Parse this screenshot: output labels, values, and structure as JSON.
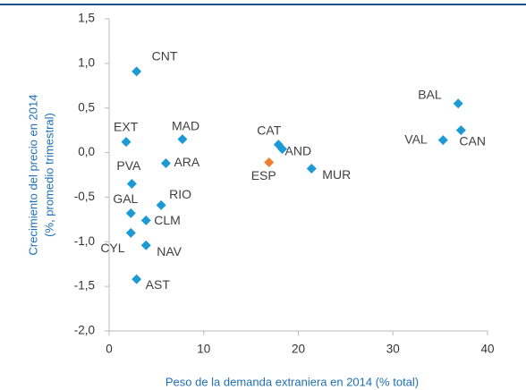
{
  "chart_data": {
    "type": "scatter",
    "xlabel": "Peso de la demanda extraniera en 2014 (% total)",
    "ylabel": [
      "Crecimiento del precio en 2014",
      "(%, promedio trimestral)"
    ],
    "xlim": [
      0,
      40
    ],
    "xticks": [
      0,
      10,
      20,
      30,
      40
    ],
    "ylim": [
      -2.0,
      1.5
    ],
    "yticks": [
      {
        "value": -2.0,
        "label": "-2,0"
      },
      {
        "value": -1.5,
        "label": "-1,5"
      },
      {
        "value": -1.0,
        "label": "-1,0"
      },
      {
        "value": -0.5,
        "label": "-0,5"
      },
      {
        "value": 0.0,
        "label": "0,0"
      },
      {
        "value": 0.5,
        "label": "0,5"
      },
      {
        "value": 1.0,
        "label": "1,0"
      },
      {
        "value": 1.5,
        "label": "1,5"
      }
    ],
    "labels": [
      "CNT",
      "EXT",
      "MAD",
      "ARA",
      "PVA",
      "RIO",
      "GAL",
      "CLM",
      "CYL",
      "NAV",
      "AST",
      "CAT",
      "AND",
      "ESP",
      "MUR",
      "BAL",
      "CAN",
      "VAL"
    ],
    "x": [
      2.9,
      1.8,
      7.75,
      6.0,
      2.4,
      5.5,
      2.3,
      3.9,
      2.3,
      3.9,
      2.9,
      17.9,
      18.3,
      16.9,
      21.4,
      36.9,
      37.2,
      35.3
    ],
    "values": [
      0.91,
      0.12,
      0.15,
      -0.12,
      -0.35,
      -0.59,
      -0.68,
      -0.76,
      -0.9,
      -1.04,
      -1.42,
      0.09,
      0.04,
      -0.11,
      -0.18,
      0.55,
      0.25,
      0.14
    ],
    "colors": [
      "#1c9ad6",
      "#1c9ad6",
      "#1c9ad6",
      "#1c9ad6",
      "#1c9ad6",
      "#1c9ad6",
      "#1c9ad6",
      "#1c9ad6",
      "#1c9ad6",
      "#1c9ad6",
      "#1c9ad6",
      "#1c9ad6",
      "#1c9ad6",
      "#ed7d31",
      "#1c9ad6",
      "#1c9ad6",
      "#1c9ad6",
      "#1c9ad6"
    ]
  }
}
